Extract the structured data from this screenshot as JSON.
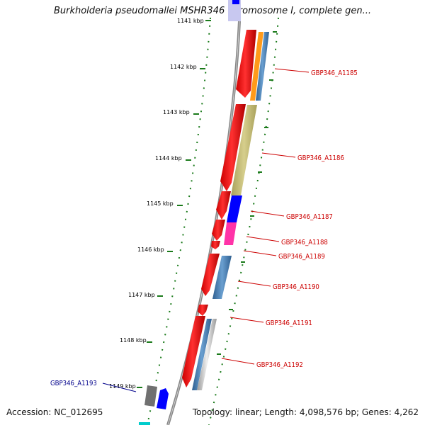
{
  "title": "Burkholderia pseudomallei MSHR346 chromosome I, complete gen...",
  "accession": "Accession: NC_012695",
  "stats": "Topology: linear; Length: 4,098,576 bp; Genes: 4,262",
  "ruler": {
    "ticks": [
      "1141 kbp",
      "1142 kbp",
      "1143 kbp",
      "1144 kbp",
      "1145 kbp",
      "1146 kbp",
      "1147 kbp",
      "1148 kbp",
      "1149 kbp"
    ]
  },
  "genes": [
    {
      "id": "GBP346_A1185",
      "color": "#cc0000"
    },
    {
      "id": "GBP346_A1186",
      "color": "#cc0000"
    },
    {
      "id": "GBP346_A1187",
      "color": "#cc0000"
    },
    {
      "id": "GBP346_A1188",
      "color": "#cc0000"
    },
    {
      "id": "GBP346_A1189",
      "color": "#cc0000"
    },
    {
      "id": "GBP346_A1190",
      "color": "#cc0000"
    },
    {
      "id": "GBP346_A1191",
      "color": "#cc0000"
    },
    {
      "id": "GBP346_A1192",
      "color": "#cc0000"
    },
    {
      "id": "GBP346_A1193",
      "color": "#00008b"
    }
  ],
  "colors": {
    "backbone": "#888888",
    "ruler": "#1a7a1a",
    "cds": "#ff0000",
    "orange": "#ff9a1a",
    "steel": "#4a7fb5",
    "khaki": "#c8c07a",
    "blue": "#0000ff",
    "pink": "#ff33a8",
    "gray": "#707070",
    "cyan": "#00cccc"
  }
}
